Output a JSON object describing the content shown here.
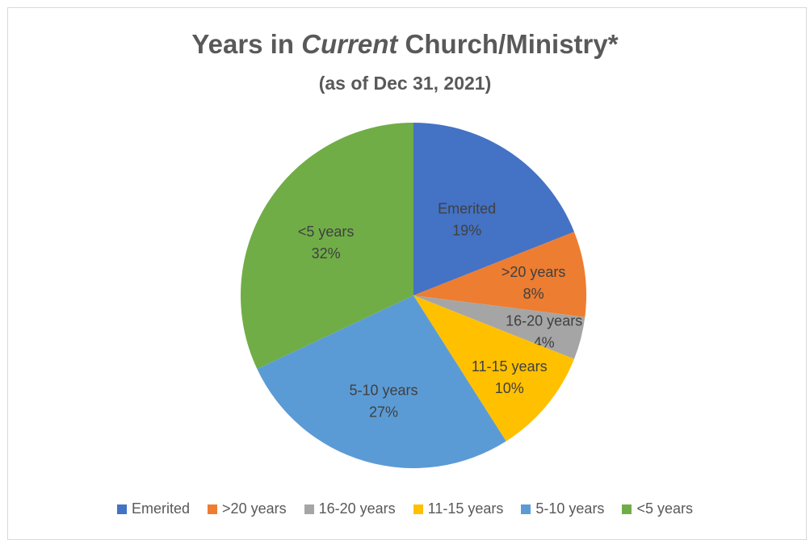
{
  "chart_data": {
    "type": "pie",
    "title_parts": [
      "Years in ",
      "Current",
      " Church/Ministry*"
    ],
    "subtitle": "(as of Dec 31, 2021)",
    "categories": [
      "Emerited",
      ">20 years",
      "16-20 years",
      "11-15 years",
      "5-10 years",
      "<5 years"
    ],
    "values": [
      19,
      8,
      4,
      10,
      27,
      32
    ],
    "value_labels": [
      "19%",
      "8%",
      "4%",
      "10%",
      "27%",
      "32%"
    ],
    "colors": [
      "#4472c4",
      "#ed7d31",
      "#a5a5a5",
      "#ffc000",
      "#5b9bd5",
      "#70ad47"
    ],
    "legend_position": "bottom"
  }
}
